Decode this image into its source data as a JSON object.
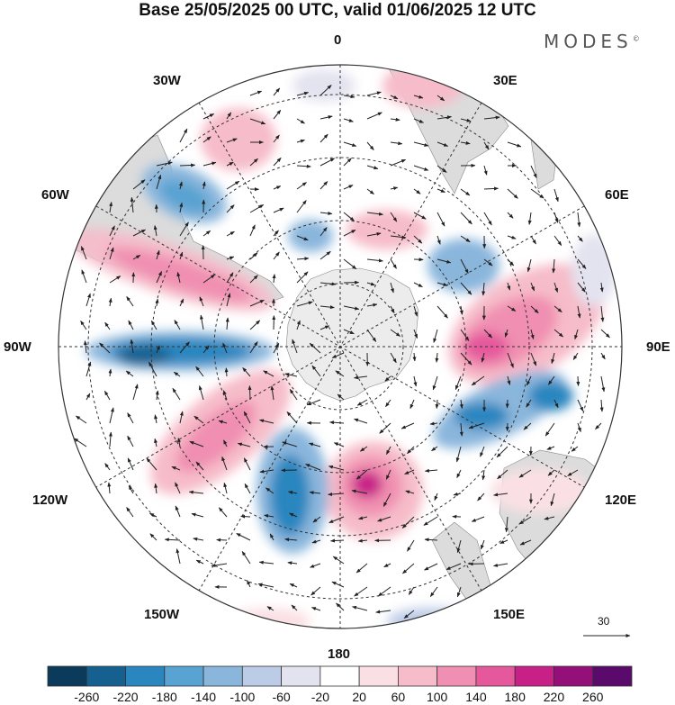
{
  "title": "Base 25/05/2025 00 UTC, valid 01/06/2025 12 UTC",
  "brand": "MODES",
  "brand_mark": "©",
  "longitude_labels": {
    "top": "0",
    "top_left": "30W",
    "top_right": "30E",
    "upper_left": "60W",
    "upper_right": "60E",
    "left": "90W",
    "right": "90E",
    "lower_left": "120W",
    "lower_right": "120E",
    "bottom_left": "150W",
    "bottom_right": "150E",
    "bottom": "180"
  },
  "reference_vector": "30",
  "colorbar": {
    "labels": [
      "-260",
      "-220",
      "-180",
      "-140",
      "-100",
      "-60",
      "-20",
      "20",
      "60",
      "100",
      "140",
      "180",
      "220",
      "260"
    ],
    "colors": [
      "#0c3a5a",
      "#16608f",
      "#2a86bf",
      "#58a3d1",
      "#8ab6dc",
      "#bccbe6",
      "#e3e3f0",
      "#ffffff",
      "#fae0e4",
      "#f6bcc9",
      "#f08fb1",
      "#e5589c",
      "#c72187",
      "#950f78",
      "#5a0a6b"
    ]
  },
  "anomaly_colors": {
    "land": "#dedede",
    "antarctica": "#ececec"
  }
}
